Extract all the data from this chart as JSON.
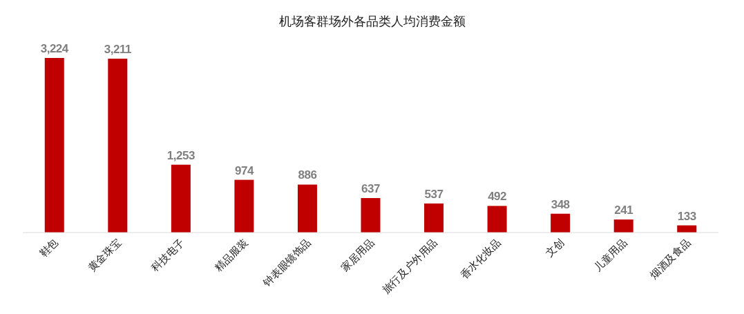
{
  "chart_data": {
    "type": "bar",
    "title": "机场客群场外各品类人均消费金额",
    "categories": [
      "鞋包",
      "黄金珠宝",
      "科技电子",
      "精品服装",
      "钟表眼镜饰品",
      "家居用品",
      "旅行及户外用品",
      "香水化妆品",
      "文创",
      "儿童用品",
      "烟酒及食品"
    ],
    "values": [
      3224,
      3211,
      1253,
      974,
      886,
      637,
      537,
      492,
      348,
      241,
      133
    ],
    "value_labels": [
      "3,224",
      "3,211",
      "1,253",
      "974",
      "886",
      "637",
      "537",
      "492",
      "348",
      "241",
      "133"
    ],
    "color": "#c00000",
    "tick_labels": "x"
  }
}
